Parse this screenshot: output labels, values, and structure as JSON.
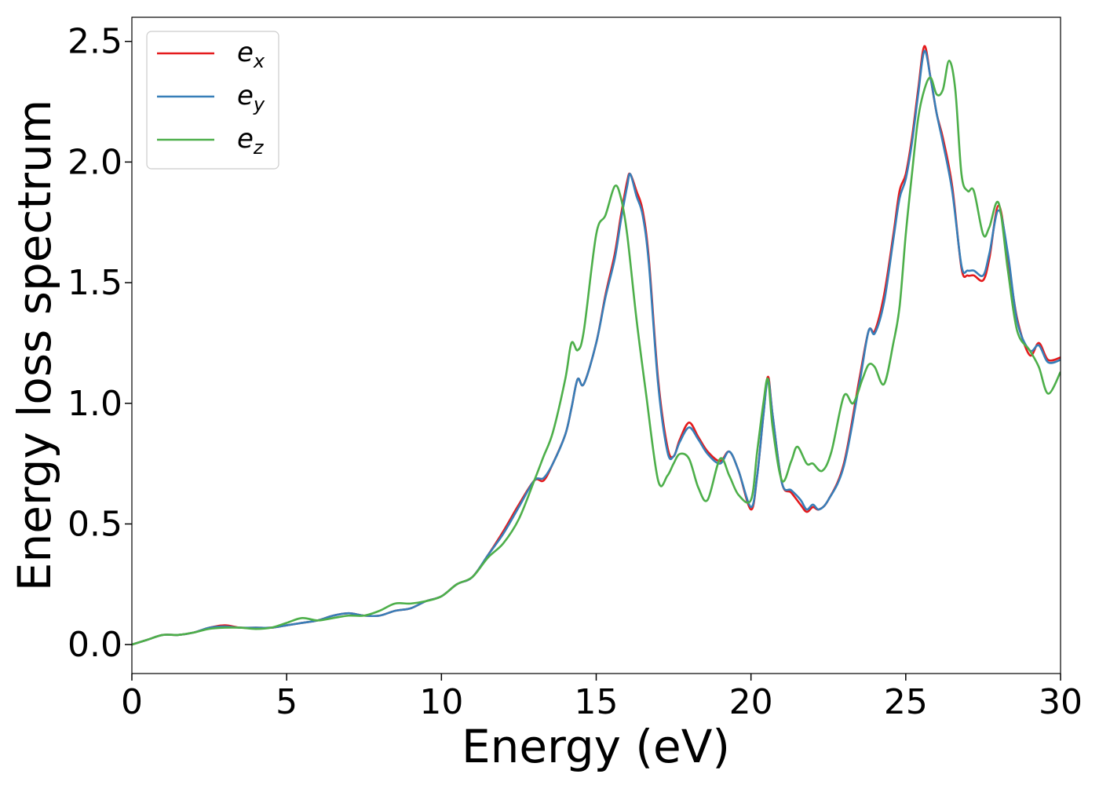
{
  "chart_data": {
    "type": "line",
    "title": "",
    "xlabel": "Energy (eV)",
    "ylabel": "Energy loss spectrum",
    "xlim": [
      0,
      30
    ],
    "ylim": [
      -0.12,
      2.6
    ],
    "xticks": [
      0,
      5,
      10,
      15,
      20,
      25,
      30
    ],
    "xtick_labels": [
      "0",
      "5",
      "10",
      "15",
      "20",
      "25",
      "30"
    ],
    "yticks": [
      0.0,
      0.5,
      1.0,
      1.5,
      2.0,
      2.5
    ],
    "ytick_labels": [
      "0.0",
      "0.5",
      "1.0",
      "1.5",
      "2.0",
      "2.5"
    ],
    "grid": false,
    "legend_position": "top-left",
    "series": [
      {
        "name": "e_x",
        "legend_base": "e",
        "legend_sub": "x",
        "color": "#e41a1c",
        "x": [
          0,
          0.5,
          1,
          1.5,
          2,
          2.5,
          3,
          3.5,
          4,
          4.5,
          5,
          5.5,
          6,
          6.5,
          7,
          7.5,
          8,
          8.5,
          9,
          9.5,
          10,
          10.5,
          11,
          11.5,
          12,
          12.5,
          13,
          13.3,
          13.6,
          14,
          14.2,
          14.4,
          14.6,
          15,
          15.3,
          15.6,
          15.8,
          16,
          16.1,
          16.3,
          16.5,
          16.7,
          17,
          17.3,
          17.5,
          17.7,
          18,
          18.3,
          18.6,
          19,
          19.3,
          19.6,
          20,
          20.2,
          20.4,
          20.55,
          20.7,
          21,
          21.3,
          21.6,
          21.8,
          22,
          22.2,
          22.5,
          23,
          23.5,
          23.8,
          24,
          24.3,
          24.6,
          24.8,
          25,
          25.2,
          25.4,
          25.6,
          25.8,
          26,
          26.2,
          26.5,
          26.8,
          27,
          27.2,
          27.5,
          27.7,
          28,
          28.3,
          28.6,
          29,
          29.3,
          29.6,
          30
        ],
        "y": [
          0,
          0.02,
          0.04,
          0.04,
          0.05,
          0.07,
          0.08,
          0.07,
          0.07,
          0.07,
          0.08,
          0.09,
          0.1,
          0.12,
          0.13,
          0.12,
          0.12,
          0.14,
          0.15,
          0.18,
          0.2,
          0.25,
          0.28,
          0.37,
          0.47,
          0.58,
          0.68,
          0.68,
          0.75,
          0.87,
          0.98,
          1.1,
          1.08,
          1.25,
          1.45,
          1.62,
          1.78,
          1.92,
          1.95,
          1.88,
          1.8,
          1.6,
          1.1,
          0.82,
          0.78,
          0.85,
          0.92,
          0.86,
          0.8,
          0.76,
          0.8,
          0.72,
          0.56,
          0.7,
          0.95,
          1.11,
          0.95,
          0.67,
          0.63,
          0.58,
          0.55,
          0.57,
          0.56,
          0.6,
          0.75,
          1.1,
          1.3,
          1.3,
          1.45,
          1.7,
          1.88,
          1.95,
          2.1,
          2.3,
          2.48,
          2.35,
          2.2,
          2.1,
          1.9,
          1.56,
          1.53,
          1.53,
          1.51,
          1.6,
          1.82,
          1.6,
          1.35,
          1.2,
          1.25,
          1.18,
          1.19
        ]
      },
      {
        "name": "e_y",
        "legend_base": "e",
        "legend_sub": "y",
        "color": "#377eb8",
        "x": [
          0,
          0.5,
          1,
          1.5,
          2,
          2.5,
          3,
          3.5,
          4,
          4.5,
          5,
          5.5,
          6,
          6.5,
          7,
          7.5,
          8,
          8.5,
          9,
          9.5,
          10,
          10.5,
          11,
          11.5,
          12,
          12.5,
          13,
          13.3,
          13.6,
          14,
          14.2,
          14.4,
          14.6,
          15,
          15.3,
          15.6,
          15.8,
          16,
          16.1,
          16.3,
          16.5,
          16.7,
          17,
          17.3,
          17.5,
          17.7,
          18,
          18.3,
          18.6,
          19,
          19.3,
          19.6,
          20,
          20.2,
          20.4,
          20.55,
          20.7,
          21,
          21.3,
          21.6,
          21.8,
          22,
          22.2,
          22.5,
          23,
          23.5,
          23.8,
          24,
          24.3,
          24.6,
          24.8,
          25,
          25.2,
          25.4,
          25.6,
          25.8,
          26,
          26.2,
          26.5,
          26.8,
          27,
          27.2,
          27.5,
          27.7,
          28,
          28.3,
          28.6,
          29,
          29.3,
          29.6,
          30
        ],
        "y": [
          0,
          0.02,
          0.04,
          0.04,
          0.05,
          0.07,
          0.075,
          0.07,
          0.07,
          0.07,
          0.08,
          0.09,
          0.1,
          0.12,
          0.13,
          0.12,
          0.12,
          0.14,
          0.15,
          0.18,
          0.2,
          0.25,
          0.28,
          0.37,
          0.46,
          0.57,
          0.68,
          0.69,
          0.75,
          0.87,
          0.98,
          1.1,
          1.08,
          1.25,
          1.44,
          1.6,
          1.76,
          1.9,
          1.95,
          1.86,
          1.78,
          1.58,
          1.08,
          0.8,
          0.78,
          0.84,
          0.9,
          0.85,
          0.79,
          0.75,
          0.8,
          0.72,
          0.57,
          0.7,
          0.95,
          1.1,
          0.95,
          0.67,
          0.64,
          0.6,
          0.56,
          0.58,
          0.56,
          0.6,
          0.74,
          1.08,
          1.3,
          1.29,
          1.42,
          1.68,
          1.85,
          1.93,
          2.08,
          2.28,
          2.46,
          2.35,
          2.2,
          2.08,
          1.88,
          1.57,
          1.55,
          1.55,
          1.53,
          1.62,
          1.8,
          1.62,
          1.34,
          1.22,
          1.24,
          1.17,
          1.18
        ]
      },
      {
        "name": "e_z",
        "legend_base": "e",
        "legend_sub": "z",
        "color": "#4daf4a",
        "x": [
          0,
          0.5,
          1,
          1.5,
          2,
          2.5,
          3,
          3.5,
          4,
          4.5,
          5,
          5.5,
          6,
          6.5,
          7,
          7.5,
          8,
          8.5,
          9,
          9.5,
          10,
          10.5,
          11,
          11.5,
          12,
          12.5,
          13,
          13.3,
          13.6,
          14,
          14.2,
          14.4,
          14.6,
          15,
          15.3,
          15.6,
          15.8,
          16,
          16.3,
          16.6,
          17,
          17.3,
          17.5,
          17.7,
          18,
          18.3,
          18.6,
          19,
          19.3,
          19.6,
          20,
          20.2,
          20.4,
          20.55,
          20.7,
          21,
          21.3,
          21.5,
          21.8,
          22,
          22.3,
          22.6,
          23,
          23.3,
          23.6,
          23.8,
          24,
          24.3,
          24.6,
          24.8,
          25,
          25.2,
          25.4,
          25.6,
          25.8,
          26,
          26.2,
          26.4,
          26.6,
          26.8,
          27,
          27.2,
          27.5,
          27.7,
          28,
          28.3,
          28.6,
          29,
          29.3,
          29.6,
          30
        ],
        "y": [
          0,
          0.02,
          0.04,
          0.04,
          0.05,
          0.065,
          0.07,
          0.07,
          0.065,
          0.07,
          0.09,
          0.11,
          0.1,
          0.11,
          0.12,
          0.12,
          0.14,
          0.17,
          0.17,
          0.18,
          0.2,
          0.25,
          0.28,
          0.36,
          0.42,
          0.52,
          0.68,
          0.78,
          0.88,
          1.1,
          1.25,
          1.22,
          1.3,
          1.7,
          1.78,
          1.9,
          1.85,
          1.7,
          1.35,
          1.05,
          0.68,
          0.7,
          0.75,
          0.79,
          0.77,
          0.65,
          0.6,
          0.77,
          0.7,
          0.62,
          0.6,
          0.8,
          1.0,
          1.1,
          0.9,
          0.68,
          0.76,
          0.82,
          0.75,
          0.75,
          0.72,
          0.8,
          1.03,
          1.0,
          1.1,
          1.16,
          1.15,
          1.08,
          1.25,
          1.4,
          1.7,
          1.95,
          2.18,
          2.3,
          2.35,
          2.28,
          2.3,
          2.42,
          2.3,
          1.95,
          1.88,
          1.88,
          1.7,
          1.73,
          1.83,
          1.55,
          1.3,
          1.22,
          1.15,
          1.04,
          1.13
        ]
      }
    ]
  }
}
